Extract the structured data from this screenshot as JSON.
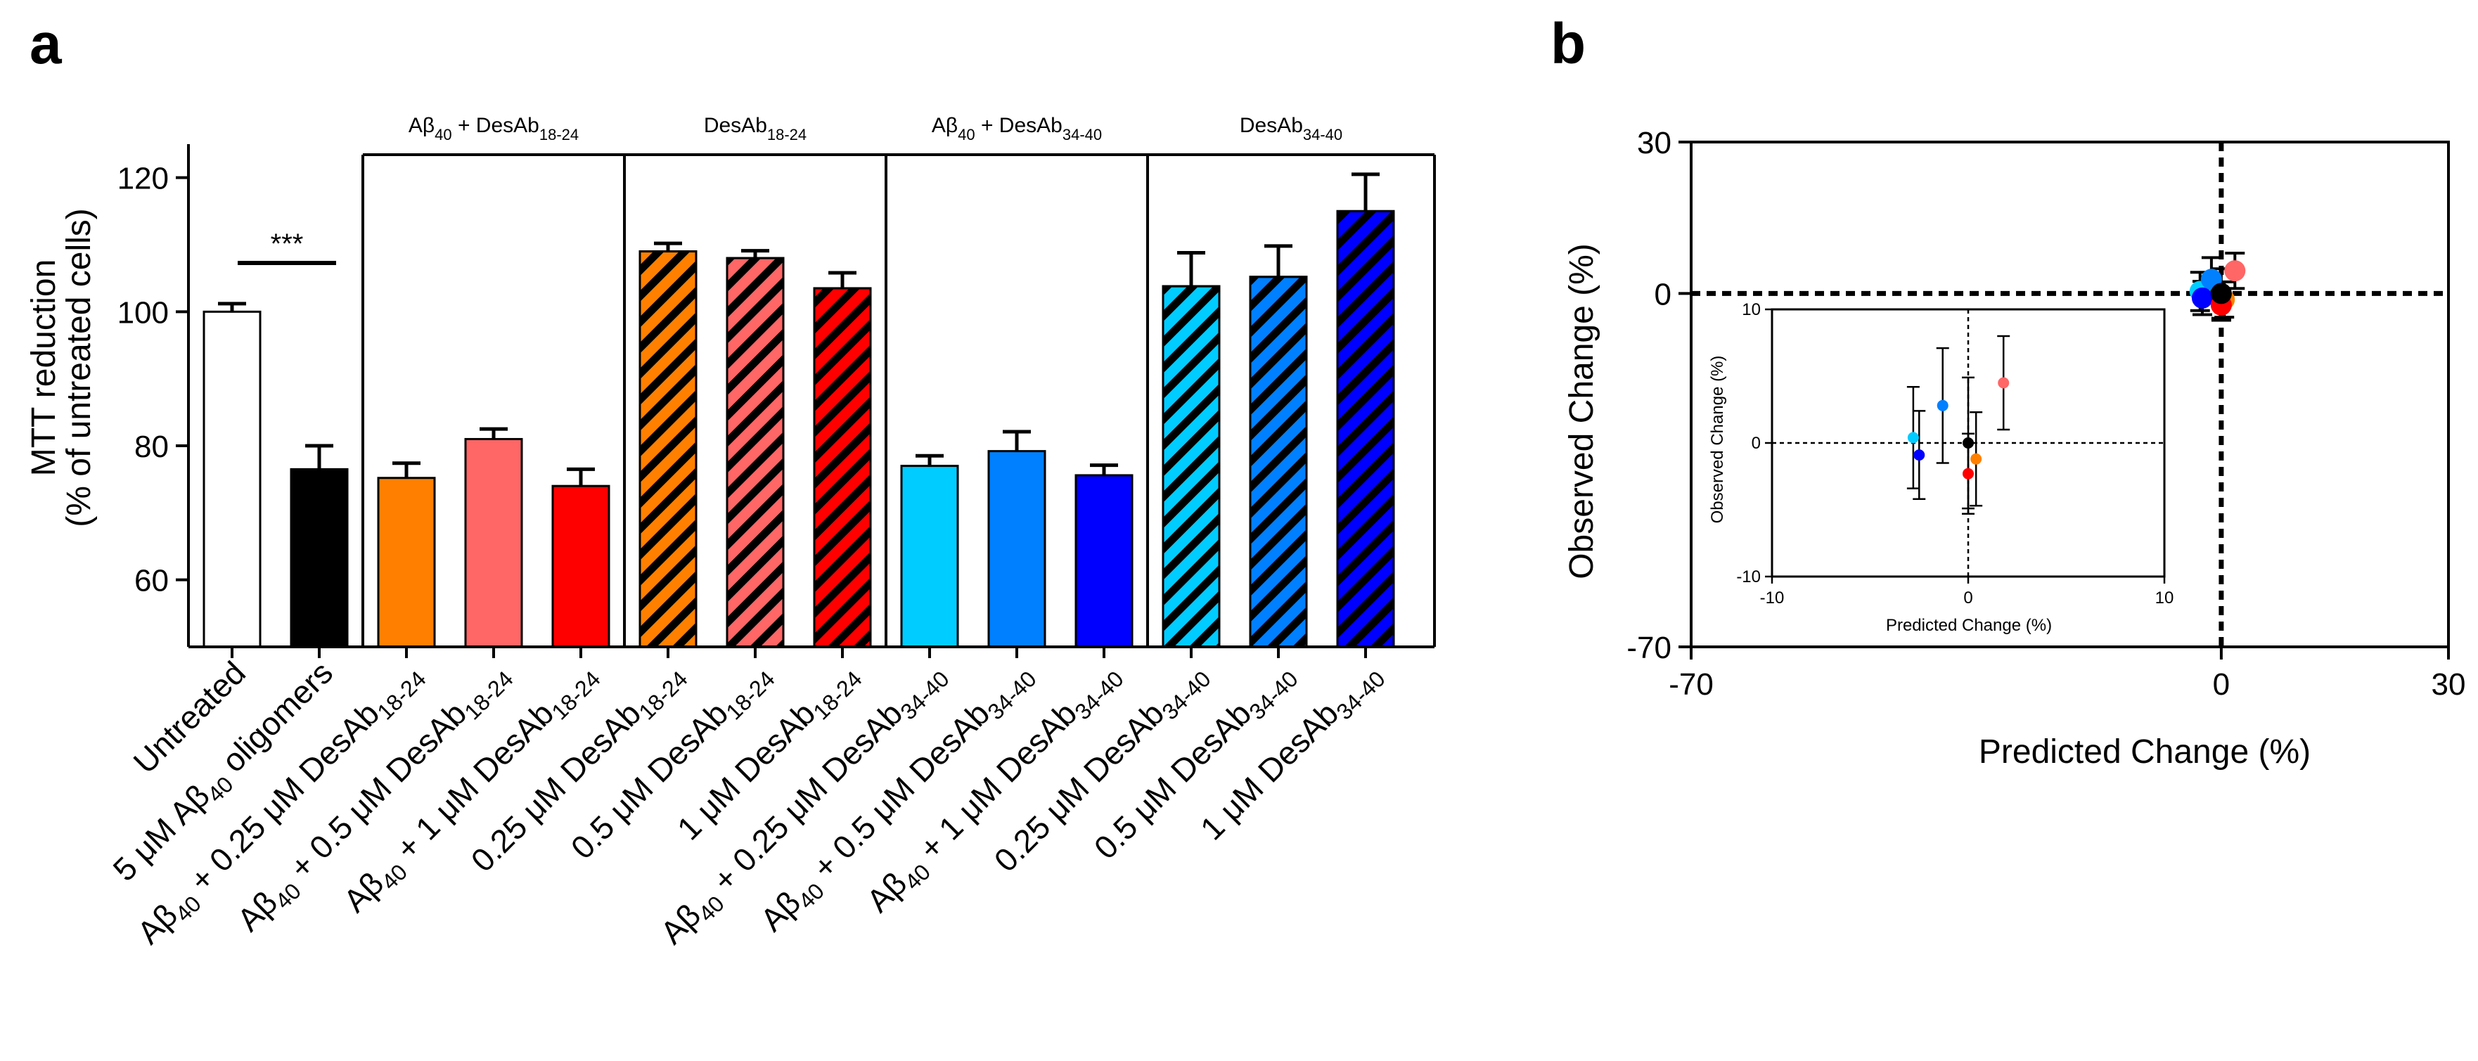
{
  "panel_a": {
    "label": "a",
    "significance": "***",
    "groups": [
      {
        "pre": "Aβ",
        "sub1": "40",
        "mid": " + DesAb",
        "sub2": "18-24"
      },
      {
        "pre": "",
        "sub1": "",
        "mid": "DesAb",
        "sub2": "18-24"
      },
      {
        "pre": "Aβ",
        "sub1": "40",
        "mid": " + DesAb",
        "sub2": "34-40"
      },
      {
        "pre": "",
        "sub1": "",
        "mid": "DesAb",
        "sub2": "34-40"
      }
    ],
    "category_labels": [
      {
        "pre": "Untreated",
        "sub1": "",
        "mid": "",
        "sub2": ""
      },
      {
        "pre": "5 μM Aβ",
        "sub1": "40",
        "mid": " oligomers",
        "sub2": ""
      },
      {
        "pre": "Aβ",
        "sub1": "40",
        "mid": " + 0.25 μM DesAb",
        "sub2": "18-24"
      },
      {
        "pre": "Aβ",
        "sub1": "40",
        "mid": " + 0.5 μM DesAb",
        "sub2": "18-24"
      },
      {
        "pre": "Aβ",
        "sub1": "40",
        "mid": " + 1 μM DesAb",
        "sub2": "18-24"
      },
      {
        "pre": "0.25 μM DesAb",
        "sub1": "18-24",
        "mid": "",
        "sub2": ""
      },
      {
        "pre": "0.5 μM DesAb",
        "sub1": "18-24",
        "mid": "",
        "sub2": ""
      },
      {
        "pre": "1 μM DesAb",
        "sub1": "18-24",
        "mid": "",
        "sub2": ""
      },
      {
        "pre": "Aβ",
        "sub1": "40",
        "mid": " + 0.25 μM DesAb",
        "sub2": "34-40"
      },
      {
        "pre": "Aβ",
        "sub1": "40",
        "mid": " + 0.5 μM DesAb",
        "sub2": "34-40"
      },
      {
        "pre": "Aβ",
        "sub1": "40",
        "mid": " + 1 μM DesAb",
        "sub2": "34-40"
      },
      {
        "pre": "0.25 μM DesAb",
        "sub1": "34-40",
        "mid": "",
        "sub2": ""
      },
      {
        "pre": "0.5 μM DesAb",
        "sub1": "34-40",
        "mid": "",
        "sub2": ""
      },
      {
        "pre": "1 μM DesAb",
        "sub1": "34-40",
        "mid": "",
        "sub2": ""
      }
    ]
  },
  "panel_b": {
    "label": "b",
    "inset": {
      "xlabel": "Predicted Change (%)",
      "ylabel": "Observed Change (%)",
      "xlim": [
        -10,
        10
      ],
      "ylim": [
        -10,
        10
      ],
      "xticks": [
        -10,
        0,
        10
      ],
      "yticks": [
        -10,
        0,
        10
      ]
    }
  },
  "chart_data": [
    {
      "type": "bar",
      "title": "",
      "xlabel": "",
      "ylabel": "MTT reduction",
      "ylabel2": "(% of untreated cells)",
      "ylim": [
        50,
        125
      ],
      "yticks": [
        60,
        80,
        100,
        120
      ],
      "categories": [
        "Untreated",
        "5 μM Aβ40 oligomers",
        "Aβ40 + 0.25 μM DesAb18-24",
        "Aβ40 + 0.5 μM DesAb18-24",
        "Aβ40 + 1 μM DesAb18-24",
        "0.25 μM DesAb18-24",
        "0.5 μM DesAb18-24",
        "1 μM DesAb18-24",
        "Aβ40 + 0.25 μM DesAb34-40",
        "Aβ40 + 0.5 μM DesAb34-40",
        "Aβ40 + 1 μM DesAb34-40",
        "0.25 μM DesAb34-40",
        "0.5 μM DesAb34-40",
        "1 μM DesAb34-40"
      ],
      "values": [
        100,
        76.5,
        75.2,
        81,
        74,
        109,
        108,
        103.5,
        77,
        79.2,
        75.6,
        103.8,
        105.2,
        115
      ],
      "errors": [
        1.2,
        3.5,
        2.2,
        1.5,
        2.5,
        1.2,
        1.1,
        2.3,
        1.5,
        2.9,
        1.5,
        5,
        4.6,
        5.5
      ],
      "colors": [
        "#ffffff",
        "#000000",
        "#ff8000",
        "#ff6666",
        "#ff0000",
        "#ff8000",
        "#ff6666",
        "#ff0000",
        "#00ccff",
        "#0080ff",
        "#0000ff",
        "#00ccff",
        "#0080ff",
        "#0000ff"
      ],
      "hatched": [
        false,
        false,
        false,
        false,
        false,
        true,
        true,
        true,
        false,
        false,
        false,
        true,
        true,
        true
      ]
    },
    {
      "type": "scatter",
      "title": "",
      "xlabel": "Predicted Change (%)",
      "ylabel": "Observed Change (%)",
      "xlim": [
        -70,
        30
      ],
      "ylim": [
        -70,
        30
      ],
      "xticks": [
        -70,
        0,
        30
      ],
      "yticks": [
        -70,
        0,
        30
      ],
      "points": [
        {
          "x": -2.8,
          "y": 0.4,
          "err": 3.8,
          "color": "#00ccff"
        },
        {
          "x": -1.3,
          "y": 2.8,
          "err": 4.3,
          "color": "#0080ff"
        },
        {
          "x": -2.5,
          "y": -0.9,
          "err": 3.3,
          "color": "#0000ff"
        },
        {
          "x": 1.8,
          "y": 4.5,
          "err": 3.5,
          "color": "#ff6666"
        },
        {
          "x": 0.4,
          "y": -1.2,
          "err": 3.5,
          "color": "#ff8000"
        },
        {
          "x": 0,
          "y": -2.3,
          "err": 3.0,
          "color": "#ff0000"
        },
        {
          "x": 0,
          "y": 0,
          "err": 4.9,
          "color": "#000000"
        }
      ]
    }
  ]
}
